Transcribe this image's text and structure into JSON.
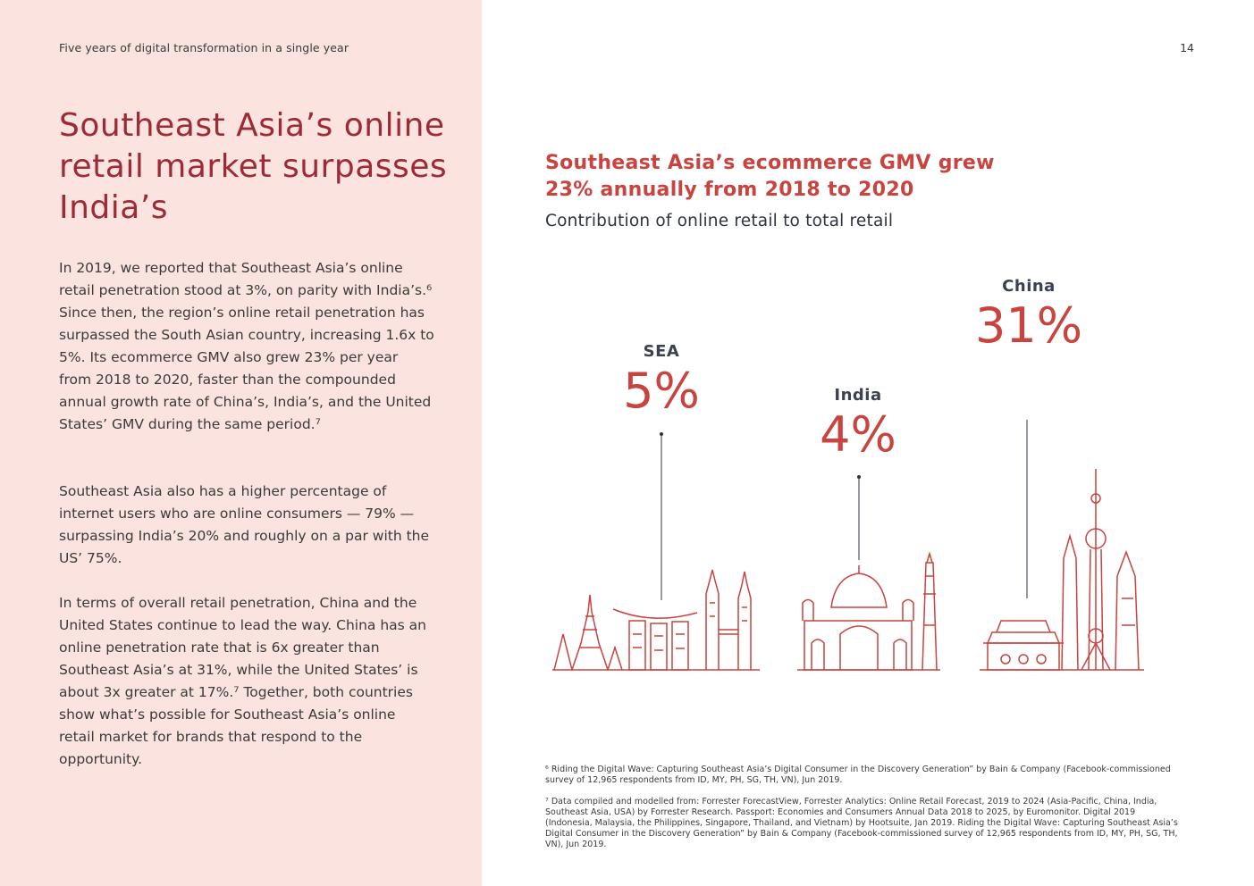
{
  "header": {
    "running_title": "Five years of digital transformation in a single year",
    "page_number": "14"
  },
  "left": {
    "headline": "Southeast Asia’s online retail market surpasses India’s",
    "paragraphs": [
      "In 2019, we reported that Southeast Asia’s online retail penetration stood at 3%, on parity with India’s.⁶ Since then, the region’s online retail penetration has surpassed the South Asian country, increasing 1.6x to 5%. Its ecommerce GMV also grew 23% per year from 2018 to 2020, faster than the compounded annual growth rate of China’s, India’s, and the United States’ GMV during the same period.⁷",
      "Southeast Asia also has a higher percentage of internet users who are online consumers — 79% — surpassing India’s 20% and roughly on a par with the US’ 75%.",
      "In terms of overall retail penetration, China and the United States continue to lead the way. China has an online penetration rate that is 6x greater than Southeast Asia’s at 31%, while the United States’ is about 3x greater at 17%.⁷ Together, both countries show what’s possible for Southeast Asia’s online retail market for brands that respond to the opportunity."
    ]
  },
  "infographic": {
    "title": "Southeast Asia’s ecommerce GMV grew 23% annually from 2018 to 2020",
    "subtitle": "Contribution of online retail to total retail",
    "regions": [
      {
        "label": "SEA",
        "value": "5%"
      },
      {
        "label": "India",
        "value": "4%"
      },
      {
        "label": "China",
        "value": "31%"
      }
    ],
    "accent_color": "#c9433f"
  },
  "footnotes": [
    "⁶ Riding the Digital Wave: Capturing Southeast Asia’s Digital Consumer in the Discovery Generation” by Bain & Company (Facebook-commissioned survey of 12,965 respondents from ID, MY, PH, SG, TH, VN), Jun 2019.",
    "⁷ Data compiled and modelled from: Forrester ForecastView, Forrester Analytics: Online Retail Forecast, 2019 to 2024 (Asia-Pacific, China, India, Southeast Asia, USA) by Forrester Research. Passport: Economies and Consumers Annual Data 2018 to 2025, by Euromonitor. Digital 2019 (Indonesia, Malaysia, the Philippines, Singapore, Thailand, and Vietnam) by Hootsuite, Jan 2019. Riding the Digital Wave: Capturing Southeast Asia’s Digital Consumer in the Discovery Generation” by Bain & Company (Facebook-commissioned survey of 12,965 respondents from ID, MY, PH, SG, TH, VN), Jun 2019."
  ]
}
